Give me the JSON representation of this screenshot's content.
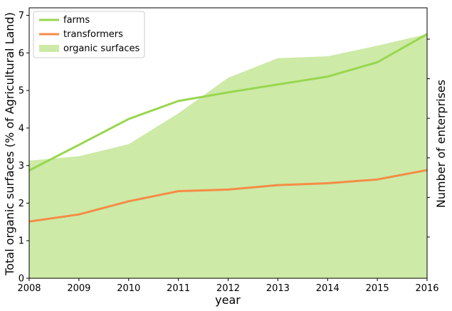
{
  "chart_data": {
    "type": "area",
    "x": [
      2008,
      2009,
      2010,
      2011,
      2012,
      2013,
      2014,
      2015,
      2016
    ],
    "xlabel": "year",
    "ylabel": "Total organic surfaces (% of Agricultural Land)",
    "ylabel_right": "Number of enterprises",
    "xlim": [
      2008,
      2016
    ],
    "ylim": [
      0,
      7.2
    ],
    "xticks": [
      "2008",
      "2009",
      "2010",
      "2011",
      "2012",
      "2013",
      "2014",
      "2015",
      "2016"
    ],
    "yticks": [
      "0",
      "1",
      "2",
      "3",
      "4",
      "5",
      "6",
      "7"
    ],
    "right_axis": {
      "tick_count": 6,
      "tick_labels_shown": false
    },
    "grid": false,
    "legend_position": "upper-left",
    "series": [
      {
        "name": "farms",
        "kind": "line",
        "color": "#99d64f",
        "values": [
          2.87,
          3.55,
          4.24,
          4.72,
          4.95,
          5.16,
          5.37,
          5.75,
          6.5
        ]
      },
      {
        "name": "transformers",
        "kind": "line",
        "color": "#f58c46",
        "values": [
          1.51,
          1.7,
          2.05,
          2.32,
          2.36,
          2.48,
          2.53,
          2.63,
          2.88
        ]
      },
      {
        "name": "organic surfaces",
        "kind": "area",
        "color": "#cdeaa7",
        "values": [
          3.13,
          3.25,
          3.57,
          4.39,
          5.34,
          5.86,
          5.91,
          6.19,
          6.5
        ]
      }
    ]
  }
}
